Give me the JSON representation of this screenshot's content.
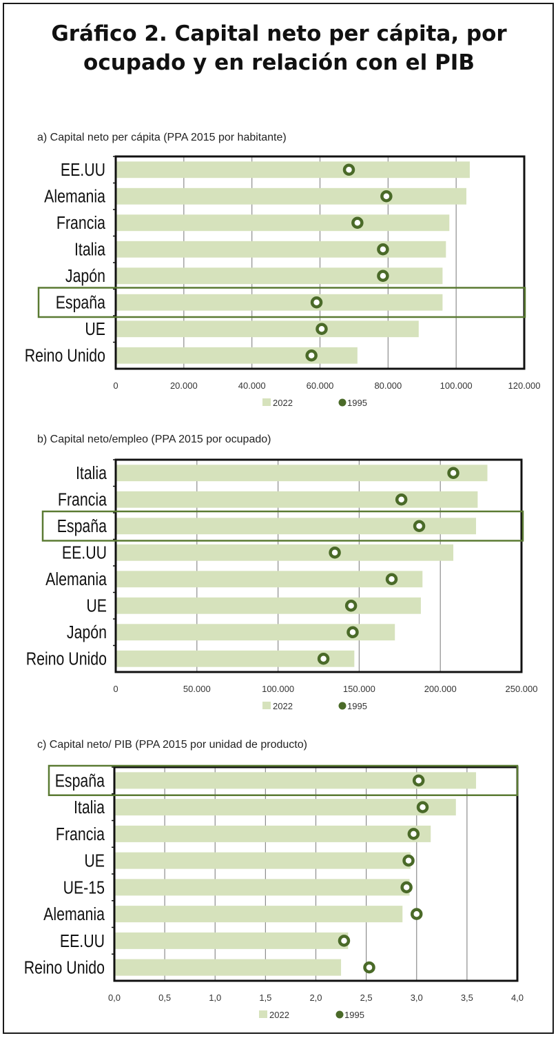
{
  "title": {
    "line1": "Gráfico 2. Capital neto per cápita, por",
    "line2": "ocupado y en relación con el PIB"
  },
  "colors": {
    "bar": "#d6e2bc",
    "marker": "#4a6a28",
    "highlight": "#5a7a32",
    "gridline": "#8c8c8c",
    "frame": "#111111"
  },
  "legend": {
    "bar_label": "2022",
    "marker_label": "1995"
  },
  "chart_data": [
    {
      "type": "bar",
      "subtitle": "a) Capital neto per cápita (PPA 2015 por habitante)",
      "categories": [
        "EE.UU",
        "Alemania",
        "Francia",
        "Italia",
        "Japón",
        "España",
        "UE",
        "Reino Unido"
      ],
      "series": [
        {
          "name": "2022",
          "values": [
            104000,
            103000,
            98000,
            97000,
            96000,
            96000,
            89000,
            71000
          ]
        },
        {
          "name": "1995",
          "values": [
            68500,
            79500,
            71000,
            78500,
            78500,
            59000,
            60500,
            57500
          ]
        }
      ],
      "xlim": [
        0,
        120000
      ],
      "xticks": [
        "0",
        "20.000",
        "40.000",
        "60.000",
        "80.000",
        "100.000",
        "120.000"
      ],
      "highlight": "España",
      "grid": true,
      "legend_position": "bottom"
    },
    {
      "type": "bar",
      "subtitle": "b) Capital neto/empleo (PPA 2015 por ocupado)",
      "categories": [
        "Italia",
        "Francia",
        "España",
        "EE.UU",
        "Alemania",
        "UE",
        "Japón",
        "Reino Unido"
      ],
      "series": [
        {
          "name": "2022",
          "values": [
            229000,
            223000,
            222000,
            208000,
            189000,
            188000,
            172000,
            147000
          ]
        },
        {
          "name": "1995",
          "values": [
            208000,
            176000,
            187000,
            135000,
            170000,
            145000,
            146000,
            128000
          ]
        }
      ],
      "xlim": [
        0,
        250000
      ],
      "xticks": [
        "0",
        "50.000",
        "100.000",
        "150.000",
        "200.000",
        "250.000"
      ],
      "highlight": "España",
      "grid": true,
      "legend_position": "bottom"
    },
    {
      "type": "bar",
      "subtitle": "c) Capital neto/ PIB (PPA 2015 por unidad de producto)",
      "categories": [
        "España",
        "Italia",
        "Francia",
        "UE",
        "UE-15",
        "Alemania",
        "EE.UU",
        "Reino Unido"
      ],
      "series": [
        {
          "name": "2022",
          "values": [
            3.59,
            3.39,
            3.14,
            2.94,
            2.93,
            2.86,
            2.32,
            2.25
          ]
        },
        {
          "name": "1995",
          "values": [
            3.02,
            3.06,
            2.97,
            2.92,
            2.9,
            3.0,
            2.28,
            2.53
          ]
        }
      ],
      "xlim": [
        0,
        4
      ],
      "xticks": [
        "0,0",
        "0,5",
        "1,0",
        "1,5",
        "2,0",
        "2,5",
        "3,0",
        "3,5",
        "4,0"
      ],
      "highlight": "España",
      "grid": true,
      "legend_position": "bottom"
    }
  ]
}
